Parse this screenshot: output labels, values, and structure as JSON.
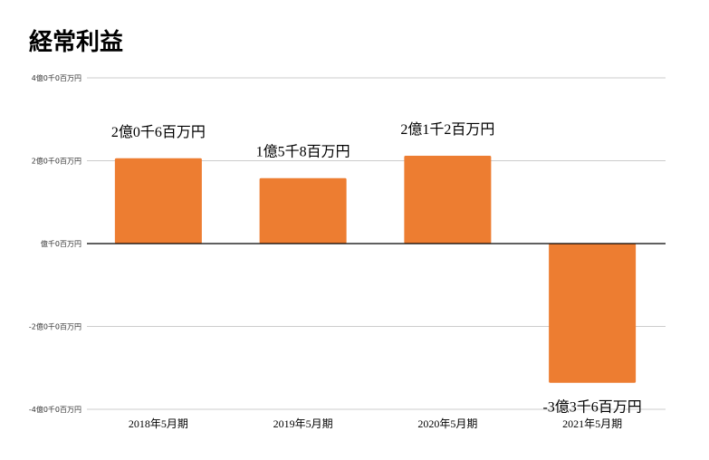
{
  "chart_data": {
    "type": "bar",
    "title": "経常利益",
    "categories": [
      "2018年5月期",
      "2019年5月期",
      "2020年5月期",
      "2021年5月期"
    ],
    "values": [
      206,
      158,
      212,
      -336
    ],
    "unit": "百万円",
    "data_labels": [
      "2億0千6百万円",
      "1億5千8百万円",
      "2億1千2百万円",
      "-3億3千6百万円"
    ],
    "y_ticks": [
      {
        "value": 400,
        "label": "4億0千0百万円"
      },
      {
        "value": 200,
        "label": "2億0千0百万円"
      },
      {
        "value": 0,
        "label": "億千0百万円"
      },
      {
        "value": -200,
        "label": "-2億0千0百万円"
      },
      {
        "value": -400,
        "label": "-4億0千0百万円"
      }
    ],
    "ylim": [
      -400,
      400
    ],
    "grid": true,
    "bar_color": "#ED7D31",
    "grid_color": "#CCCCCC",
    "zero_line_color": "#000000"
  }
}
